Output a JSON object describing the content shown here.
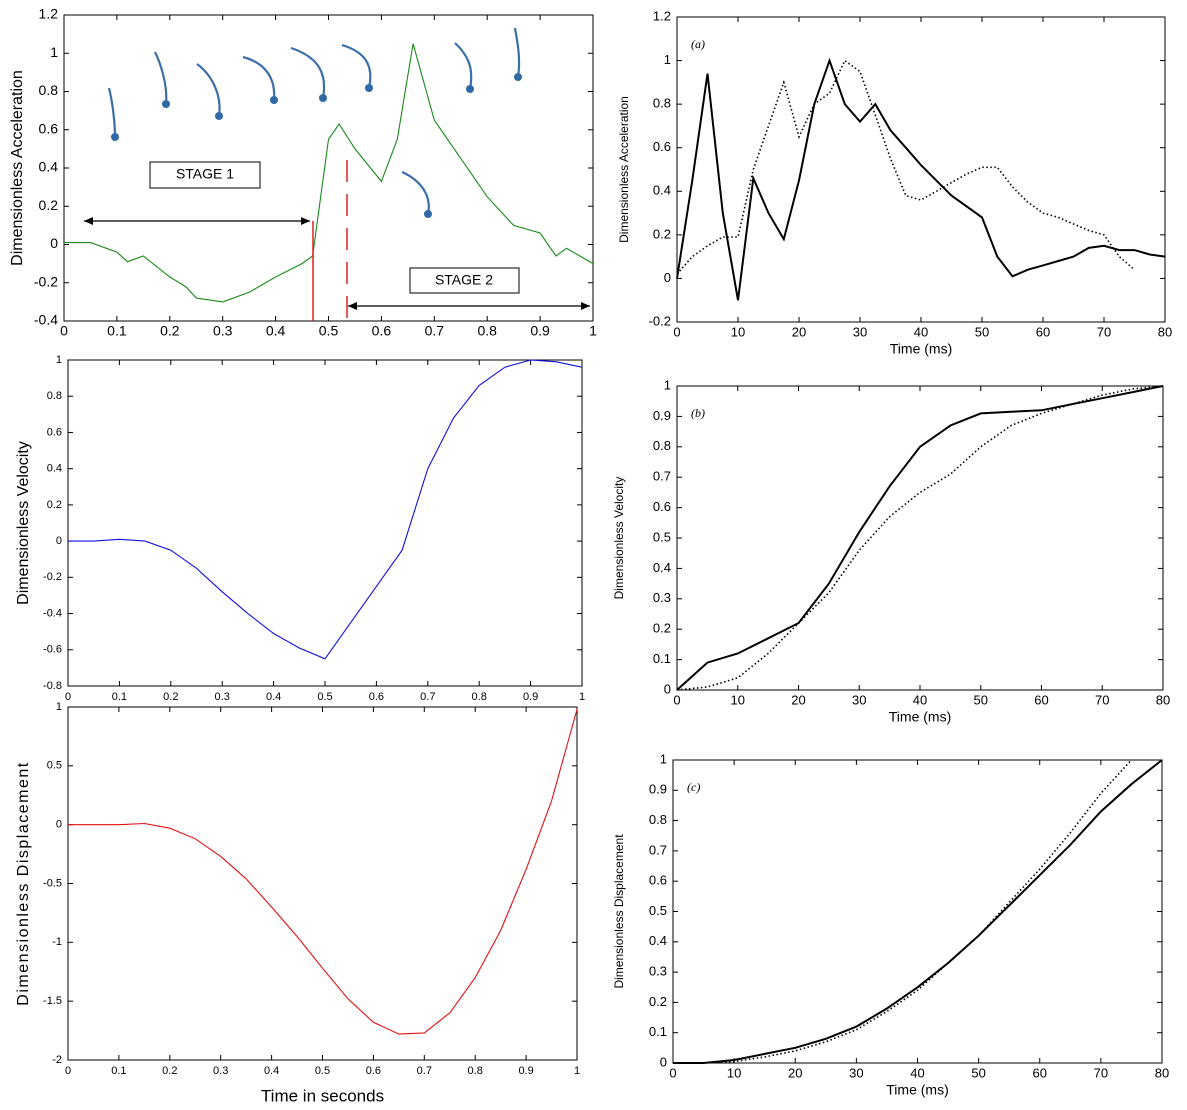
{
  "chart_data": [
    {
      "type": "line",
      "ylabel": "Dimensionless Acceleration",
      "annotations": [
        "STAGE 1",
        "STAGE 2"
      ],
      "xlim": [
        0,
        1
      ],
      "xticks": [
        0,
        0.1,
        0.2,
        0.3,
        0.4,
        0.5,
        0.6,
        0.7,
        0.8,
        0.9,
        1
      ],
      "ylim": [
        -0.4,
        1.2
      ],
      "yticks": [
        -0.4,
        -0.2,
        0,
        0.2,
        0.4,
        0.6,
        0.8,
        1,
        1.2
      ],
      "x": [
        0,
        0.05,
        0.1,
        0.12,
        0.15,
        0.2,
        0.23,
        0.25,
        0.3,
        0.35,
        0.4,
        0.45,
        0.47,
        0.5,
        0.52,
        0.55,
        0.6,
        0.63,
        0.66,
        0.7,
        0.75,
        0.8,
        0.85,
        0.9,
        0.93,
        0.95,
        1
      ],
      "series": [
        {
          "color": "#1a8a1a",
          "style": "solid",
          "values": [
            0.01,
            0.01,
            -0.04,
            -0.09,
            -0.06,
            -0.17,
            -0.22,
            -0.28,
            -0.3,
            -0.25,
            -0.17,
            -0.1,
            -0.06,
            0.55,
            0.63,
            0.5,
            0.33,
            0.55,
            1.05,
            0.65,
            0.45,
            0.25,
            0.1,
            0.06,
            -0.06,
            -0.02,
            -0.1
          ]
        }
      ]
    },
    {
      "type": "line",
      "ylabel": "Dimensionless Velocity",
      "xlim": [
        0,
        1
      ],
      "xticks": [
        0,
        0.1,
        0.2,
        0.3,
        0.4,
        0.5,
        0.6,
        0.7,
        0.8,
        0.9,
        1
      ],
      "ylim": [
        -0.8,
        1
      ],
      "yticks": [
        -0.8,
        -0.6,
        -0.4,
        -0.2,
        0,
        0.2,
        0.4,
        0.6,
        0.8,
        1
      ],
      "x": [
        0,
        0.05,
        0.1,
        0.15,
        0.2,
        0.25,
        0.3,
        0.35,
        0.4,
        0.45,
        0.5,
        0.55,
        0.6,
        0.65,
        0.7,
        0.75,
        0.8,
        0.85,
        0.9,
        0.95,
        1
      ],
      "series": [
        {
          "color": "#1010e0",
          "style": "solid",
          "values": [
            0,
            0,
            0.01,
            0,
            -0.05,
            -0.15,
            -0.28,
            -0.4,
            -0.51,
            -0.59,
            -0.65,
            -0.45,
            -0.25,
            -0.05,
            0.4,
            0.68,
            0.86,
            0.96,
            1,
            0.99,
            0.96
          ]
        }
      ]
    },
    {
      "type": "line",
      "ylabel": "Dimensionless Displacement",
      "xlabel": "Time in seconds",
      "xlim": [
        0,
        1
      ],
      "xticks": [
        0,
        0.1,
        0.2,
        0.3,
        0.4,
        0.5,
        0.6,
        0.7,
        0.8,
        0.9,
        1
      ],
      "ylim": [
        -2,
        1
      ],
      "yticks": [
        -2,
        -1.5,
        -1,
        -0.5,
        0,
        0.5,
        1
      ],
      "x": [
        0,
        0.1,
        0.15,
        0.2,
        0.25,
        0.3,
        0.35,
        0.4,
        0.45,
        0.5,
        0.55,
        0.6,
        0.65,
        0.7,
        0.75,
        0.8,
        0.85,
        0.9,
        0.95,
        1
      ],
      "series": [
        {
          "color": "#e01010",
          "style": "solid",
          "values": [
            0,
            0,
            0.01,
            -0.03,
            -0.12,
            -0.27,
            -0.46,
            -0.7,
            -0.95,
            -1.22,
            -1.48,
            -1.68,
            -1.78,
            -1.77,
            -1.6,
            -1.3,
            -0.9,
            -0.38,
            0.2,
            0.98
          ]
        }
      ]
    },
    {
      "type": "line",
      "ylabel": "Dimensionless Acceleration",
      "xlabel": "Time (ms)",
      "annotation": "(a)",
      "xlim": [
        0,
        80
      ],
      "xticks": [
        0,
        10,
        20,
        30,
        40,
        50,
        60,
        70,
        80
      ],
      "ylim": [
        -0.2,
        1.2
      ],
      "yticks": [
        -0.2,
        0,
        0.2,
        0.4,
        0.6,
        0.8,
        1,
        1.2
      ],
      "x": [
        0,
        2.5,
        5,
        7.5,
        10,
        12.5,
        15,
        17.5,
        20,
        22.5,
        25,
        27.5,
        30,
        32.5,
        35,
        37.5,
        40,
        42.5,
        45,
        47.5,
        50,
        52.5,
        55,
        57.5,
        60,
        62.5,
        65,
        67.5,
        70,
        72.5,
        75,
        77.5,
        80
      ],
      "series": [
        {
          "color": "#000000",
          "style": "solid",
          "values": [
            0,
            0.45,
            0.94,
            0.3,
            -0.1,
            0.46,
            0.3,
            0.18,
            0.45,
            0.8,
            1,
            0.8,
            0.72,
            0.8,
            0.68,
            0.6,
            0.52,
            0.45,
            0.38,
            0.33,
            0.28,
            0.1,
            0.01,
            0.04,
            0.06,
            0.08,
            0.1,
            0.14,
            0.15,
            0.13,
            0.13,
            0.11,
            0.1
          ]
        },
        {
          "color": "#000000",
          "style": "dotted",
          "values": [
            0.02,
            0.1,
            0.15,
            0.19,
            0.19,
            0.5,
            0.7,
            0.9,
            0.65,
            0.8,
            0.85,
            1,
            0.95,
            0.75,
            0.55,
            0.38,
            0.36,
            0.4,
            0.44,
            0.48,
            0.51,
            0.51,
            0.42,
            0.35,
            0.3,
            0.28,
            0.25,
            0.22,
            0.2,
            0.1,
            0.04,
            null,
            null
          ]
        }
      ]
    },
    {
      "type": "line",
      "ylabel": "Dimensionless Velocity",
      "xlabel": "Time (ms)",
      "annotation": "(b)",
      "xlim": [
        0,
        80
      ],
      "xticks": [
        0,
        10,
        20,
        30,
        40,
        50,
        60,
        70,
        80
      ],
      "ylim": [
        0,
        1
      ],
      "yticks": [
        0,
        0.1,
        0.2,
        0.3,
        0.4,
        0.5,
        0.6,
        0.7,
        0.8,
        0.9,
        1
      ],
      "x": [
        0,
        5,
        10,
        15,
        20,
        25,
        30,
        35,
        40,
        45,
        50,
        55,
        60,
        65,
        70,
        75,
        80
      ],
      "series": [
        {
          "color": "#000000",
          "style": "solid",
          "values": [
            0,
            0.09,
            0.12,
            0.17,
            0.22,
            0.35,
            0.52,
            0.67,
            0.8,
            0.87,
            0.91,
            0.915,
            0.92,
            0.94,
            0.96,
            0.98,
            1
          ]
        },
        {
          "color": "#000000",
          "style": "dotted",
          "values": [
            0,
            0.01,
            0.04,
            0.12,
            0.22,
            0.32,
            0.46,
            0.57,
            0.65,
            0.71,
            0.8,
            0.87,
            0.91,
            0.94,
            0.97,
            0.99,
            1
          ]
        }
      ]
    },
    {
      "type": "line",
      "ylabel": "Dimensionless Displacement",
      "xlabel": "Time (ms)",
      "annotation": "(c)",
      "xlim": [
        0,
        80
      ],
      "xticks": [
        0,
        10,
        20,
        30,
        40,
        50,
        60,
        70,
        80
      ],
      "ylim": [
        0,
        1
      ],
      "yticks": [
        0,
        0.1,
        0.2,
        0.3,
        0.4,
        0.5,
        0.6,
        0.7,
        0.8,
        0.9,
        1
      ],
      "x": [
        0,
        5,
        10,
        15,
        20,
        25,
        30,
        35,
        40,
        45,
        50,
        55,
        60,
        65,
        70,
        75,
        80
      ],
      "series": [
        {
          "color": "#000000",
          "style": "solid",
          "values": [
            0,
            0,
            0.01,
            0.03,
            0.05,
            0.08,
            0.12,
            0.18,
            0.25,
            0.33,
            0.42,
            0.52,
            0.62,
            0.72,
            0.83,
            0.92,
            1
          ]
        },
        {
          "color": "#000000",
          "style": "dotted",
          "values": [
            0,
            0,
            0.005,
            0.02,
            0.04,
            0.07,
            0.11,
            0.17,
            0.24,
            0.33,
            0.42,
            0.53,
            0.64,
            0.76,
            0.89,
            1,
            null
          ]
        }
      ]
    }
  ]
}
